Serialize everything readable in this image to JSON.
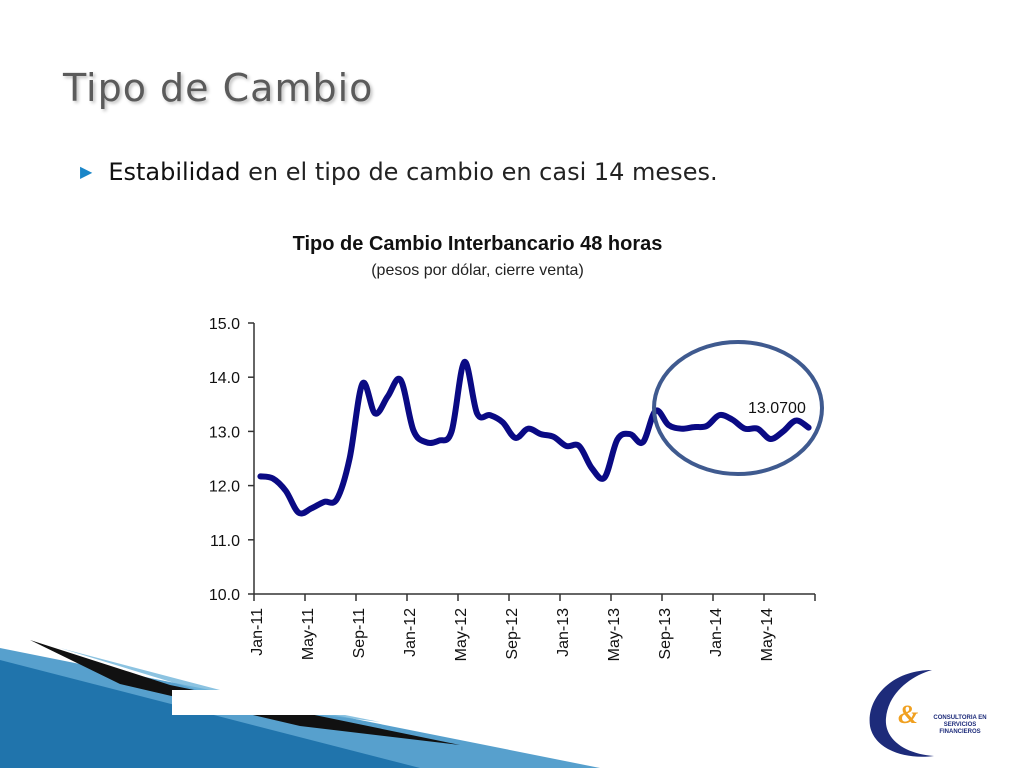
{
  "slide": {
    "title": "Tipo de Cambio",
    "bullet_strong": "Estabilidad",
    "bullet_rest": " en el tipo de cambio en casi 14 meses."
  },
  "logo": {
    "line1": "CONSULTORIA EN SERVICIOS",
    "line2": "FINANCIEROS"
  },
  "colors": {
    "series": "#0a0a84",
    "circle": "#3f5a8f",
    "accent": "#1a86c8"
  },
  "chart_data": {
    "type": "line",
    "title": "Tipo de Cambio Interbancario 48 horas",
    "subtitle": "(pesos por dólar, cierre venta)",
    "xlabel": "",
    "ylabel": "",
    "ylim": [
      10.0,
      15.0
    ],
    "yticks": [
      "15.0",
      "14.0",
      "13.0",
      "12.0",
      "11.0",
      "10.0"
    ],
    "xticks": [
      "Jan-11",
      "May-11",
      "Sep-11",
      "Jan-12",
      "May-12",
      "Sep-12",
      "Jan-13",
      "May-13",
      "Sep-13",
      "Jan-14",
      "May-14"
    ],
    "grid": false,
    "annotation": "13.0700",
    "series": [
      {
        "values": [
          12.17,
          12.13,
          11.9,
          11.5,
          11.58,
          11.7,
          11.75,
          12.5,
          13.88,
          13.33,
          13.65,
          13.95,
          13.02,
          12.8,
          12.83,
          13.0,
          14.28,
          13.33,
          13.3,
          13.17,
          12.88,
          13.05,
          12.95,
          12.9,
          12.73,
          12.73,
          12.32,
          12.15,
          12.85,
          12.95,
          12.8,
          13.38,
          13.12,
          13.05,
          13.08,
          13.1,
          13.3,
          13.22,
          13.05,
          13.05,
          12.86,
          13.0,
          13.2,
          13.07
        ]
      }
    ]
  }
}
